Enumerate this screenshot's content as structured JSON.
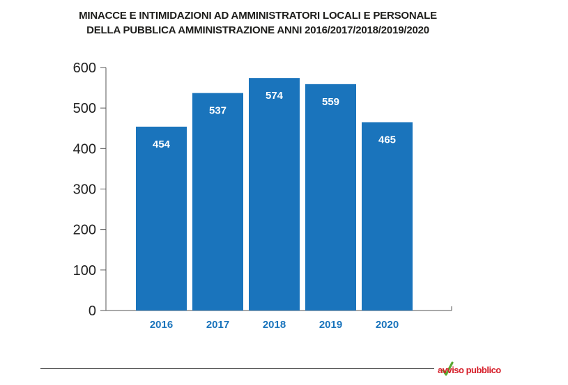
{
  "chart_data": {
    "type": "bar",
    "title_lines": [
      "MINACCE E INTIMIDAZIONI AD AMMINISTRATORI LOCALI E PERSONALE",
      "DELLA PUBBLICA AMMINISTRAZIONE ANNI 2016/2017/2018/2019/2020"
    ],
    "categories": [
      "2016",
      "2017",
      "2018",
      "2019",
      "2020"
    ],
    "values": [
      454,
      537,
      574,
      559,
      465
    ],
    "data_labels": [
      "454",
      "537",
      "574",
      "559",
      "465"
    ],
    "y_ticks": [
      "0",
      "100",
      "200",
      "300",
      "400",
      "500",
      "600"
    ],
    "ylim": [
      0,
      600
    ],
    "xlabel": "",
    "ylabel": "",
    "grid": false,
    "legend": "none"
  },
  "colors": {
    "bar": "#1a74bc",
    "category_label": "#1a74bc",
    "data_label": "#ffffff",
    "axis": "#555555",
    "title": "#1d1d1b",
    "logo_red": "#d6202b",
    "logo_green": "#5aa832"
  },
  "footer": {
    "logo_text": "avviso pubblico"
  }
}
